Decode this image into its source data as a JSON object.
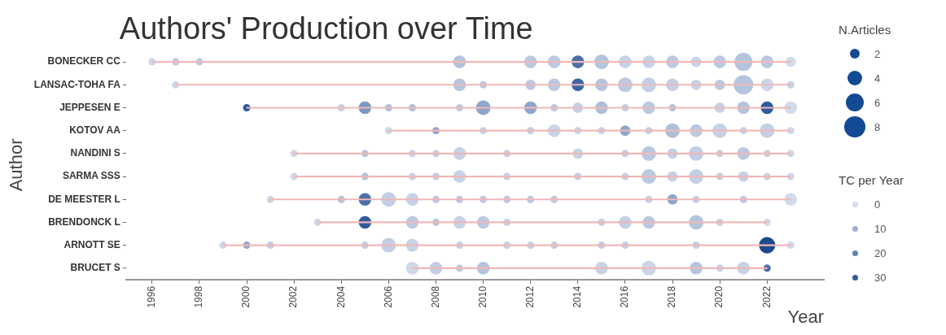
{
  "chart_data": {
    "type": "bubble",
    "title": "Authors' Production over Time",
    "xlabel": "Year",
    "ylabel": "Author",
    "legend_title": "N.Articles",
    "clabel": "TC per Year",
    "orientation": "horizontal",
    "categories": [
      "BONECKER CC",
      "LANSAC-TOHA FA",
      "JEPPESEN E",
      "KOTOV AA",
      "NANDINI S",
      "SARMA SSS",
      "DE MEESTER L",
      "BRENDONCK L",
      "ARNOTT SE",
      "BRUCET S"
    ],
    "xlim": [
      1994.9,
      2024.4
    ],
    "xticks": [
      1996,
      1998,
      2000,
      2002,
      2004,
      2006,
      2008,
      2010,
      2012,
      2014,
      2016,
      2018,
      2020,
      2022
    ],
    "size_legend": [
      2,
      4,
      6,
      8
    ],
    "annotations": [
      "0",
      "10",
      "20",
      "30"
    ],
    "series": [
      {
        "type": "bar",
        "color": "#efb8b8",
        "base": [
          1996,
          1997,
          2000,
          2006,
          2002,
          2002,
          2001,
          2003,
          1999,
          2007
        ],
        "values": [
          27,
          26,
          23,
          17,
          21,
          21,
          22,
          19,
          24,
          15
        ]
      },
      {
        "values": [
          1996,
          null,
          null,
          null,
          null,
          null,
          null,
          null,
          null,
          null
        ],
        "sizes": [
          1,
          null,
          null,
          null,
          null,
          null,
          null,
          null,
          null,
          null
        ],
        "colors": [
          "#cdd8e9",
          null,
          null,
          null,
          null,
          null,
          null,
          null,
          null,
          null
        ]
      },
      {
        "values": [
          1997,
          1997,
          null,
          null,
          null,
          null,
          null,
          null,
          null,
          null
        ],
        "sizes": [
          1,
          1,
          null,
          null,
          null,
          null,
          null,
          null,
          null,
          null
        ],
        "colors": [
          "#bbc9e0",
          "#cdd8e9",
          null,
          null,
          null,
          null,
          null,
          null,
          null,
          null
        ]
      },
      {
        "values": [
          1998,
          null,
          null,
          null,
          null,
          null,
          null,
          null,
          null,
          null
        ],
        "sizes": [
          1,
          null,
          null,
          null,
          null,
          null,
          null,
          null,
          null,
          null
        ],
        "colors": [
          "#bbc9e0",
          null,
          null,
          null,
          null,
          null,
          null,
          null,
          null,
          null
        ]
      },
      {
        "values": [
          null,
          null,
          null,
          null,
          null,
          null,
          null,
          null,
          1999,
          null
        ],
        "sizes": [
          null,
          null,
          null,
          null,
          null,
          null,
          null,
          null,
          1,
          null
        ],
        "colors": [
          null,
          null,
          null,
          null,
          null,
          null,
          null,
          null,
          "#cdd8e9",
          null
        ]
      },
      {
        "values": [
          null,
          null,
          2000,
          null,
          null,
          null,
          null,
          null,
          2000,
          null
        ],
        "sizes": [
          null,
          null,
          1,
          null,
          null,
          null,
          null,
          null,
          1,
          null
        ],
        "colors": [
          null,
          null,
          "#2f5b9c",
          null,
          null,
          null,
          null,
          null,
          "#8ea6cb",
          null
        ]
      },
      {
        "values": [
          null,
          null,
          null,
          null,
          null,
          null,
          2001,
          null,
          2001,
          null
        ],
        "sizes": [
          null,
          null,
          null,
          null,
          null,
          null,
          1,
          null,
          1,
          null
        ],
        "colors": [
          null,
          null,
          null,
          null,
          null,
          null,
          "#cdd8e9",
          null,
          "#c3cfe4",
          null
        ]
      },
      {
        "values": [
          null,
          null,
          null,
          null,
          2002,
          2002,
          null,
          null,
          null,
          null
        ],
        "sizes": [
          null,
          null,
          null,
          null,
          1,
          1,
          null,
          null,
          null,
          null
        ],
        "colors": [
          null,
          null,
          null,
          null,
          "#cdd8e9",
          "#cdd8e9",
          null,
          null,
          null,
          null
        ]
      },
      {
        "values": [
          null,
          null,
          null,
          null,
          null,
          null,
          null,
          2003,
          null,
          null
        ],
        "sizes": [
          null,
          null,
          null,
          null,
          null,
          null,
          null,
          1,
          null,
          null
        ],
        "colors": [
          null,
          null,
          null,
          null,
          null,
          null,
          null,
          "#cdd8e9",
          null,
          null
        ]
      },
      {
        "values": [
          null,
          null,
          2004,
          null,
          null,
          null,
          2004,
          null,
          null,
          null
        ],
        "sizes": [
          null,
          null,
          1,
          null,
          null,
          null,
          1,
          null,
          null,
          null
        ],
        "colors": [
          null,
          null,
          "#c6d2e6",
          null,
          null,
          null,
          "#b4c4dd",
          null,
          null,
          null
        ]
      },
      {
        "values": [
          null,
          null,
          2005,
          null,
          2005,
          2005,
          2005,
          2005,
          2005,
          null
        ],
        "sizes": [
          null,
          null,
          3,
          null,
          1,
          1,
          3,
          3,
          1,
          null
        ],
        "colors": [
          null,
          null,
          "#7c97c1",
          null,
          "#b4c4dd",
          "#b4c4dd",
          "#4a6fa8",
          "#2f5b9c",
          "#c3cfe4",
          null
        ]
      },
      {
        "values": [
          null,
          null,
          2006,
          2006,
          null,
          null,
          2006,
          null,
          2006,
          null
        ],
        "sizes": [
          null,
          null,
          1,
          1,
          null,
          null,
          4,
          null,
          4,
          null
        ],
        "colors": [
          null,
          null,
          "#adbed9",
          "#cdd8e9",
          null,
          null,
          "#c3cfe4",
          null,
          "#c3cfe4",
          null
        ]
      },
      {
        "values": [
          null,
          null,
          2007,
          null,
          2007,
          2007,
          2007,
          2007,
          2007,
          2007
        ],
        "sizes": [
          null,
          null,
          1,
          null,
          1,
          1,
          3,
          3,
          3,
          3
        ],
        "colors": [
          null,
          null,
          "#adbed9",
          null,
          "#c6d2e6",
          "#c6d2e6",
          "#c6d2e6",
          "#bbc9e0",
          "#c6d2e6",
          "#cdd8e9"
        ]
      },
      {
        "values": [
          null,
          null,
          null,
          2008,
          2008,
          2008,
          2008,
          2008,
          null,
          2008
        ],
        "sizes": [
          null,
          null,
          null,
          1,
          1,
          1,
          1,
          1,
          null,
          3
        ],
        "colors": [
          null,
          null,
          null,
          "#8ea6cb",
          "#c3cfe4",
          "#c3cfe4",
          "#bbc9e0",
          "#b4c4dd",
          null,
          "#c3cfe4"
        ]
      },
      {
        "values": [
          2009,
          2009,
          2009,
          null,
          2009,
          2009,
          2009,
          2009,
          2009,
          2009
        ],
        "sizes": [
          3,
          3,
          1,
          null,
          3,
          3,
          1,
          3,
          1,
          1
        ],
        "colors": [
          "#b4c4dd",
          "#b4c4dd",
          "#bbc9e0",
          null,
          "#c6d2e6",
          "#c6d2e6",
          "#bbc9e0",
          "#c6d2e6",
          "#c3cfe4",
          "#bbc9e0"
        ]
      },
      {
        "values": [
          null,
          2010,
          2010,
          2010,
          null,
          null,
          2010,
          2010,
          null,
          2010
        ],
        "sizes": [
          null,
          1,
          4,
          1,
          null,
          null,
          1,
          3,
          null,
          3
        ],
        "colors": [
          null,
          "#bbc9e0",
          "#8ea6cb",
          "#c6d2e6",
          null,
          null,
          "#bbc9e0",
          "#bbc9e0",
          null,
          "#b4c4dd"
        ]
      },
      {
        "values": [
          null,
          null,
          null,
          null,
          2011,
          2011,
          2011,
          2011,
          2011,
          null
        ],
        "sizes": [
          null,
          null,
          null,
          null,
          1,
          1,
          1,
          1,
          1,
          null
        ],
        "colors": [
          null,
          null,
          null,
          null,
          "#c3cfe4",
          "#c3cfe4",
          "#bbc9e0",
          "#c3cfe4",
          "#c3cfe4",
          null
        ]
      },
      {
        "values": [
          2012,
          2012,
          2012,
          2012,
          null,
          null,
          2012,
          null,
          2012,
          null
        ],
        "sizes": [
          3,
          2,
          3,
          1,
          null,
          null,
          1,
          null,
          1,
          null
        ],
        "colors": [
          "#bbc9e0",
          "#bbc9e0",
          "#8ea6cb",
          "#c3cfe4",
          null,
          null,
          "#bbc9e0",
          null,
          "#c3cfe4",
          null
        ]
      },
      {
        "values": [
          2013,
          2013,
          2013,
          2013,
          null,
          null,
          2013,
          null,
          2013,
          null
        ],
        "sizes": [
          3,
          3,
          1,
          3,
          null,
          null,
          1,
          null,
          1,
          null
        ],
        "colors": [
          "#bbc9e0",
          "#bbc9e0",
          "#bbc9e0",
          "#cad5e8",
          null,
          null,
          "#bbc9e0",
          null,
          "#c3cfe4",
          null
        ]
      },
      {
        "values": [
          2014,
          2014,
          2014,
          2014,
          2014,
          2014,
          null,
          null,
          null,
          null
        ],
        "sizes": [
          3,
          3,
          2,
          1,
          2,
          1,
          null,
          null,
          null,
          null
        ],
        "colors": [
          "#4a6fa8",
          "#3d65a3",
          "#c3cfe4",
          "#c6d2e6",
          "#c6d2e6",
          "#c3cfe4",
          null,
          null,
          null,
          null
        ]
      },
      {
        "values": [
          2015,
          2015,
          2015,
          2015,
          null,
          null,
          null,
          2015,
          2015,
          2015
        ],
        "sizes": [
          4,
          3,
          3,
          1,
          null,
          null,
          null,
          1,
          1,
          3
        ],
        "colors": [
          "#b4c4dd",
          "#b4c4dd",
          "#adbed9",
          "#c6d2e6",
          null,
          null,
          null,
          "#c3cfe4",
          "#c3cfe4",
          "#c6d2e6"
        ]
      },
      {
        "values": [
          2016,
          2016,
          2016,
          2016,
          2016,
          2016,
          null,
          2016,
          2016,
          null
        ],
        "sizes": [
          3,
          4,
          1,
          2,
          1,
          1,
          null,
          3,
          1,
          null
        ],
        "colors": [
          "#c6d2e6",
          "#bbc9e0",
          "#c3cfe4",
          "#8ea6cb",
          "#c3cfe4",
          "#c3cfe4",
          null,
          "#c3cfe4",
          "#c3cfe4",
          null
        ]
      },
      {
        "values": [
          2017,
          2017,
          2017,
          2017,
          2017,
          2017,
          2017,
          2017,
          null,
          2017
        ],
        "sizes": [
          3,
          4,
          3,
          1,
          4,
          4,
          1,
          3,
          null,
          4
        ],
        "colors": [
          "#c6d2e6",
          "#c3cfe4",
          "#bbc9e0",
          "#c6d2e6",
          "#bbc9e0",
          "#bbc9e0",
          "#c3cfe4",
          "#bbc9e0",
          null,
          "#cad5e8"
        ]
      },
      {
        "values": [
          2018,
          2018,
          2018,
          2018,
          2018,
          2018,
          2018,
          null,
          null,
          null
        ],
        "sizes": [
          3,
          3,
          1,
          4,
          2,
          2,
          2,
          null,
          null,
          null
        ],
        "colors": [
          "#bbc9e0",
          "#c3cfe4",
          "#b4c4dd",
          "#adbed9",
          "#c3cfe4",
          "#c3cfe4",
          "#8ea6cb",
          null,
          null,
          null
        ]
      },
      {
        "values": [
          2019,
          2019,
          null,
          2019,
          2019,
          2019,
          2019,
          2019,
          2019,
          2019
        ],
        "sizes": [
          2,
          2,
          null,
          3,
          4,
          4,
          1,
          4,
          1,
          3
        ],
        "colors": [
          "#c6d2e6",
          "#c6d2e6",
          null,
          "#bbc9e0",
          "#c3cfe4",
          "#c3cfe4",
          "#c3cfe4",
          "#b4c4dd",
          "#c3cfe4",
          "#b4c4dd"
        ]
      },
      {
        "values": [
          2020,
          2020,
          2020,
          2020,
          2020,
          2020,
          null,
          2020,
          null,
          2020
        ],
        "sizes": [
          3,
          2,
          2,
          4,
          1,
          1,
          null,
          1,
          null,
          1
        ],
        "colors": [
          "#bbc9e0",
          "#bbc9e0",
          "#c6d2e6",
          "#c6d2e6",
          "#c3cfe4",
          "#c3cfe4",
          null,
          "#c3cfe4",
          null,
          "#c6d2e6"
        ]
      },
      {
        "values": [
          2021,
          2021,
          2021,
          2021,
          2021,
          2021,
          2021,
          null,
          null,
          2021
        ],
        "sizes": [
          6,
          7,
          3,
          1,
          3,
          2,
          1,
          null,
          null,
          3
        ],
        "colors": [
          "#b4c4dd",
          "#b4c4dd",
          "#b4c4dd",
          "#c6d2e6",
          "#bbc9e0",
          "#c3cfe4",
          "#bbc9e0",
          null,
          null,
          "#c6d2e6"
        ]
      },
      {
        "values": [
          2022,
          2022,
          2022,
          2022,
          2022,
          2022,
          null,
          2022,
          2022,
          2022
        ],
        "sizes": [
          3,
          3,
          3,
          4,
          1,
          1,
          null,
          1,
          5,
          1
        ],
        "colors": [
          "#bbc9e0",
          "#cad5e8",
          "#2f5b9c",
          "#c3cfe4",
          "#c6d2e6",
          "#c6d2e6",
          null,
          "#cdd8e9",
          "#1d4a8e",
          "#4a6fa8"
        ]
      },
      {
        "values": [
          2023,
          2023,
          2023,
          2023,
          2023,
          2023,
          2023,
          null,
          2023,
          null
        ],
        "sizes": [
          2,
          1,
          3,
          1,
          1,
          1,
          3,
          null,
          1,
          null
        ],
        "colors": [
          "#d1dbeb",
          "#c6d2e6",
          "#d1dbeb",
          "#cdd8e9",
          "#cdd8e9",
          "#cdd8e9",
          "#d1dbeb",
          null,
          "#cdd8e9",
          null
        ]
      }
    ]
  }
}
